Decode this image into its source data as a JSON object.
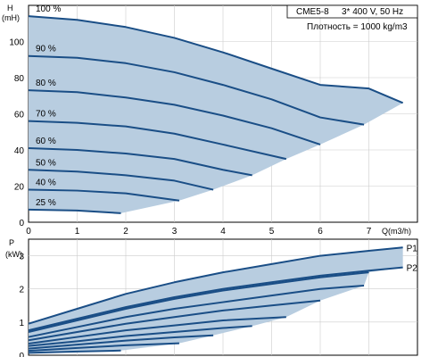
{
  "chart_data": [
    {
      "type": "line",
      "title": "",
      "xlabel": "Q(m3/h)",
      "ylabel": "H (mH)",
      "xlim": [
        0,
        8
      ],
      "ylim": [
        0,
        120
      ],
      "x_ticks": [
        0,
        1,
        2,
        3,
        4,
        5,
        6,
        7
      ],
      "y_ticks": [
        0,
        20,
        40,
        60,
        80,
        100
      ],
      "grid": true,
      "fill_color": "#b8cde0",
      "line_color": "#1a4e86",
      "series": [
        {
          "name": "100 %",
          "x": [
            0,
            1,
            2,
            3,
            4,
            5,
            6,
            7,
            7.7
          ],
          "y": [
            114,
            112,
            108,
            102,
            94,
            85,
            76,
            74,
            66
          ]
        },
        {
          "name": "90 %",
          "x": [
            0,
            1,
            2,
            3,
            4,
            5,
            6,
            6.9
          ],
          "y": [
            92,
            91,
            88,
            83,
            76,
            68,
            58,
            54
          ]
        },
        {
          "name": "80 %",
          "x": [
            0,
            1,
            2,
            3,
            4,
            5,
            6.0
          ],
          "y": [
            73,
            72,
            69,
            65,
            59,
            52,
            43
          ]
        },
        {
          "name": "70 %",
          "x": [
            0,
            1,
            2,
            3,
            4,
            5.3
          ],
          "y": [
            56,
            55,
            53,
            49,
            43,
            35
          ]
        },
        {
          "name": "60 %",
          "x": [
            0,
            1,
            2,
            3,
            4,
            4.6
          ],
          "y": [
            41,
            40,
            38,
            35,
            29,
            26
          ]
        },
        {
          "name": "50 %",
          "x": [
            0,
            1,
            2,
            3,
            3.8
          ],
          "y": [
            29,
            28,
            26,
            23,
            18
          ]
        },
        {
          "name": "40 %",
          "x": [
            0,
            1,
            2,
            3.1
          ],
          "y": [
            18,
            17.5,
            16,
            12
          ]
        },
        {
          "name": "25 %",
          "x": [
            0,
            1,
            1.9
          ],
          "y": [
            7,
            6.5,
            5
          ]
        }
      ]
    },
    {
      "type": "line",
      "title": "",
      "xlabel": "",
      "ylabel": "P (kW)",
      "xlim": [
        0,
        8
      ],
      "ylim": [
        0,
        3.5
      ],
      "y_ticks": [
        0,
        1,
        2,
        3
      ],
      "grid": true,
      "fill_color": "#b8cde0",
      "line_color": "#1a4e86",
      "series": [
        {
          "name": "P1",
          "x": [
            0,
            1,
            2,
            3,
            4,
            5,
            6,
            7,
            7.7
          ],
          "y": [
            0.95,
            1.4,
            1.85,
            2.2,
            2.5,
            2.75,
            3.0,
            3.15,
            3.25
          ]
        },
        {
          "name": "P2",
          "x": [
            0,
            1,
            2,
            3,
            4,
            5,
            6,
            7,
            7.7
          ],
          "y": [
            0.75,
            1.1,
            1.45,
            1.75,
            2.0,
            2.2,
            2.4,
            2.55,
            2.65
          ]
        },
        {
          "name": "",
          "x": [
            0,
            1,
            2,
            3,
            4,
            5,
            6,
            7
          ],
          "y": [
            0.7,
            1.05,
            1.4,
            1.7,
            1.95,
            2.15,
            2.35,
            2.5
          ]
        },
        {
          "name": "",
          "x": [
            0,
            1,
            2,
            3,
            4,
            5,
            6,
            6.9
          ],
          "y": [
            0.55,
            0.85,
            1.15,
            1.4,
            1.6,
            1.8,
            2.0,
            2.1
          ]
        },
        {
          "name": "",
          "x": [
            0,
            1,
            2,
            3,
            4,
            5,
            6.0
          ],
          "y": [
            0.45,
            0.7,
            0.95,
            1.15,
            1.35,
            1.5,
            1.65
          ]
        },
        {
          "name": "",
          "x": [
            0,
            1,
            2,
            3,
            4,
            5.3
          ],
          "y": [
            0.35,
            0.55,
            0.75,
            0.9,
            1.05,
            1.15
          ]
        },
        {
          "name": "",
          "x": [
            0,
            1,
            2,
            3,
            4,
            4.6
          ],
          "y": [
            0.28,
            0.42,
            0.58,
            0.7,
            0.82,
            0.88
          ]
        },
        {
          "name": "",
          "x": [
            0,
            1,
            2,
            3,
            3.8
          ],
          "y": [
            0.2,
            0.32,
            0.44,
            0.54,
            0.6
          ]
        },
        {
          "name": "",
          "x": [
            0,
            1,
            2,
            3.1
          ],
          "y": [
            0.13,
            0.22,
            0.3,
            0.36
          ]
        },
        {
          "name": "",
          "x": [
            0,
            1,
            1.9
          ],
          "y": [
            0.07,
            0.11,
            0.14
          ]
        }
      ]
    }
  ],
  "info": {
    "model": "CME5-8",
    "supply": "3* 400 V, 50 Hz",
    "density": "Плотность = 1000 kg/m3"
  },
  "labels": {
    "h_axis_name": "H",
    "h_axis_unit": "(mH)",
    "p_axis_name": "P",
    "p_axis_unit": "(kW)",
    "q_axis": "Q(m3/h)"
  }
}
